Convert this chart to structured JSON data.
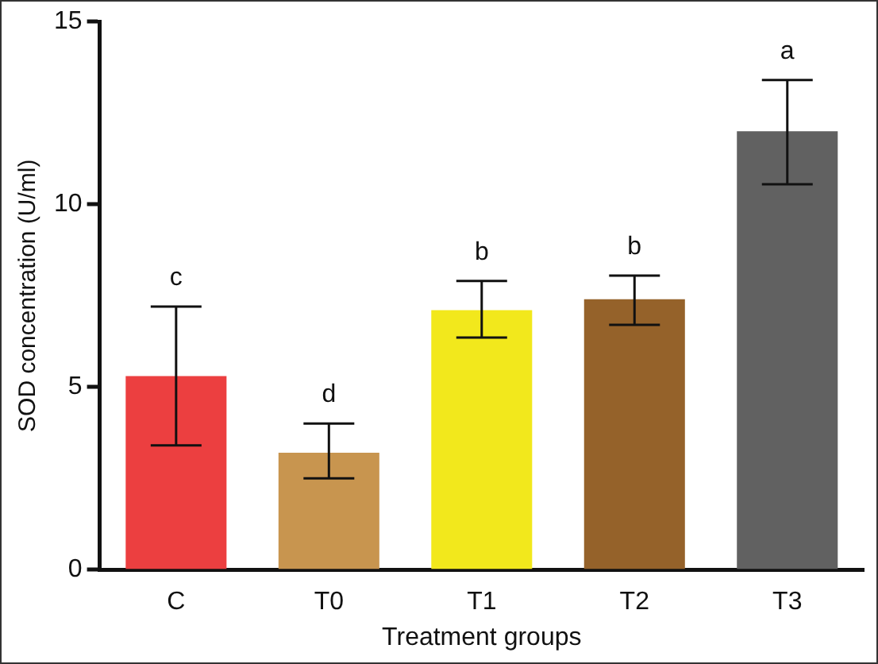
{
  "chart_data": {
    "type": "bar",
    "xlabel": "Treatment groups",
    "ylabel": "SOD concentration (U/ml)",
    "categories": [
      "C",
      "T0",
      "T1",
      "T2",
      "T3"
    ],
    "values": [
      5.3,
      3.2,
      7.1,
      7.4,
      12.0
    ],
    "colors": [
      "#ec3f40",
      "#c8954f",
      "#f2e81c",
      "#95622a",
      "#616161"
    ],
    "errors": [
      [
        3.4,
        7.2
      ],
      [
        2.5,
        4.0
      ],
      [
        6.35,
        7.9
      ],
      [
        6.7,
        8.05
      ],
      [
        10.55,
        13.4
      ]
    ],
    "ylim": [
      0,
      15
    ],
    "yticks": [
      0,
      5,
      10,
      15
    ],
    "grid": false,
    "legend": false,
    "annotations": [
      "c",
      "d",
      "b",
      "b",
      "a"
    ]
  }
}
